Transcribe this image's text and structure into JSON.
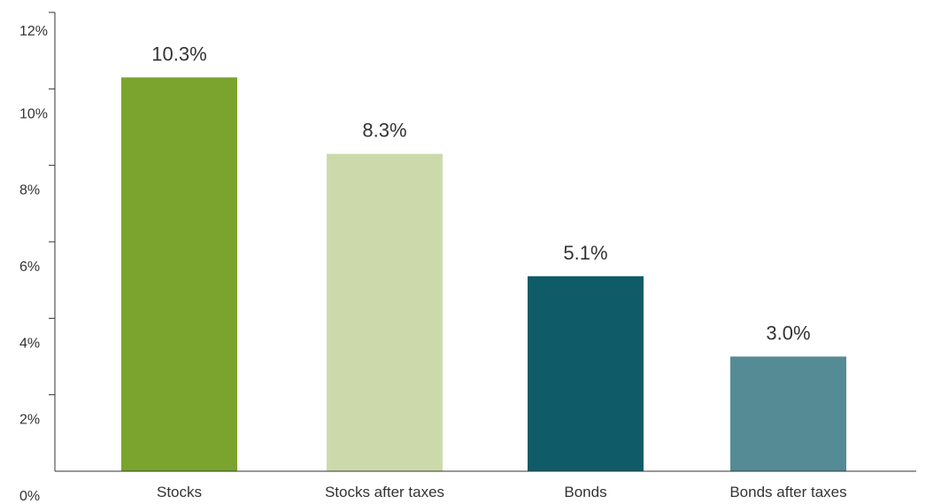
{
  "chart_data": {
    "type": "bar",
    "categories": [
      "Stocks",
      "Stocks after taxes",
      "Bonds",
      "Bonds after taxes"
    ],
    "values": [
      10.3,
      8.3,
      5.1,
      3.0
    ],
    "data_labels": [
      "10.3%",
      "8.3%",
      "5.1%",
      "3.0%"
    ],
    "colors": [
      "#7aa42d",
      "#ccdaab",
      "#0f5c68",
      "#558b94"
    ],
    "yticks": [
      0,
      2,
      4,
      6,
      8,
      10,
      12
    ],
    "ytick_labels": [
      "0%",
      "2%",
      "4%",
      "6%",
      "8%",
      "10%",
      "12%"
    ],
    "ylim": [
      0,
      12
    ],
    "title": "",
    "xlabel": "",
    "ylabel": "",
    "grid": false,
    "legend": false
  }
}
